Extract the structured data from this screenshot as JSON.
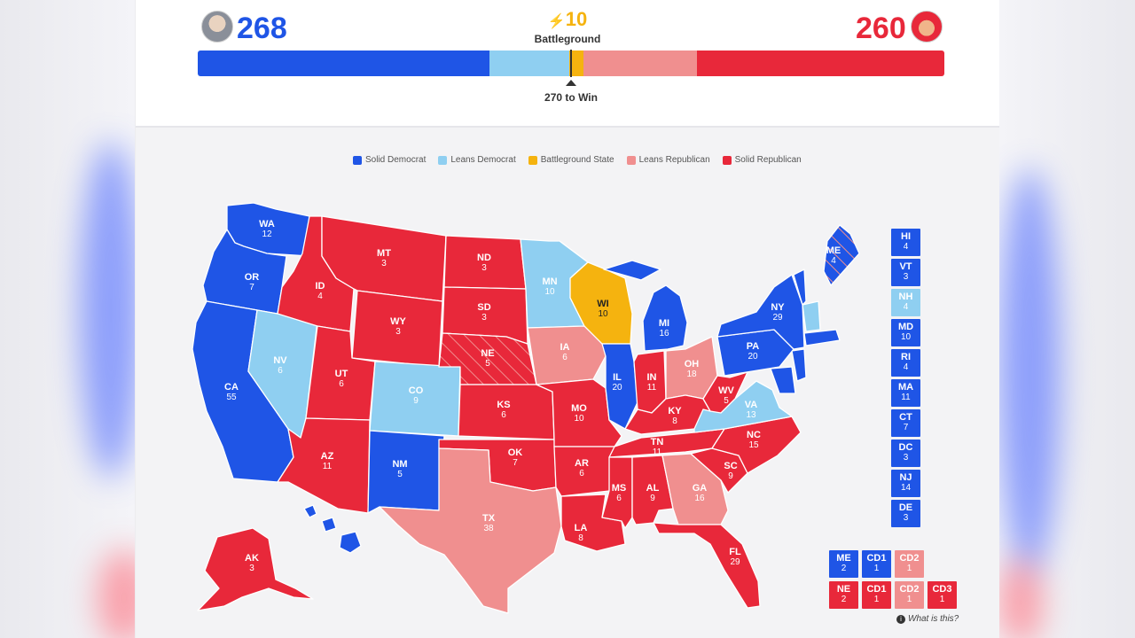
{
  "colors": {
    "solid_dem": "#1f55e6",
    "lean_dem": "#8fcff1",
    "battleground": "#f5b30f",
    "lean_rep": "#f08f8f",
    "solid_rep": "#e8283a"
  },
  "header": {
    "dem_score": "268",
    "rep_score": "260",
    "battleground_count": "10",
    "battleground_label": "Battleground",
    "to_win_label": "270 to Win",
    "bar": {
      "solid_dem": 210,
      "lean_dem": 58,
      "battleground": 10,
      "lean_rep": 82,
      "solid_rep": 178
    }
  },
  "legend": [
    {
      "label": "Solid Democrat",
      "color": "#1f55e6"
    },
    {
      "label": "Leans Democrat",
      "color": "#8fcff1"
    },
    {
      "label": "Battleground State",
      "color": "#f5b30f"
    },
    {
      "label": "Leans Republican",
      "color": "#f08f8f"
    },
    {
      "label": "Solid Republican",
      "color": "#e8283a"
    }
  ],
  "states": [
    {
      "abbr": "WA",
      "ev": "12",
      "rating": "solid_dem"
    },
    {
      "abbr": "OR",
      "ev": "7",
      "rating": "solid_dem"
    },
    {
      "abbr": "CA",
      "ev": "55",
      "rating": "solid_dem"
    },
    {
      "abbr": "NV",
      "ev": "6",
      "rating": "lean_dem"
    },
    {
      "abbr": "ID",
      "ev": "4",
      "rating": "solid_rep"
    },
    {
      "abbr": "MT",
      "ev": "3",
      "rating": "solid_rep"
    },
    {
      "abbr": "WY",
      "ev": "3",
      "rating": "solid_rep"
    },
    {
      "abbr": "UT",
      "ev": "6",
      "rating": "solid_rep"
    },
    {
      "abbr": "AZ",
      "ev": "11",
      "rating": "solid_rep"
    },
    {
      "abbr": "CO",
      "ev": "9",
      "rating": "lean_dem"
    },
    {
      "abbr": "NM",
      "ev": "5",
      "rating": "solid_dem"
    },
    {
      "abbr": "ND",
      "ev": "3",
      "rating": "solid_rep"
    },
    {
      "abbr": "SD",
      "ev": "3",
      "rating": "solid_rep"
    },
    {
      "abbr": "NE",
      "ev": "5",
      "rating": "solid_rep"
    },
    {
      "abbr": "KS",
      "ev": "6",
      "rating": "solid_rep"
    },
    {
      "abbr": "OK",
      "ev": "7",
      "rating": "solid_rep"
    },
    {
      "abbr": "TX",
      "ev": "38",
      "rating": "lean_rep"
    },
    {
      "abbr": "MN",
      "ev": "10",
      "rating": "lean_dem"
    },
    {
      "abbr": "IA",
      "ev": "6",
      "rating": "lean_rep"
    },
    {
      "abbr": "MO",
      "ev": "10",
      "rating": "solid_rep"
    },
    {
      "abbr": "AR",
      "ev": "6",
      "rating": "solid_rep"
    },
    {
      "abbr": "LA",
      "ev": "8",
      "rating": "solid_rep"
    },
    {
      "abbr": "WI",
      "ev": "10",
      "rating": "battleground"
    },
    {
      "abbr": "IL",
      "ev": "20",
      "rating": "solid_dem"
    },
    {
      "abbr": "MI",
      "ev": "16",
      "rating": "solid_dem"
    },
    {
      "abbr": "IN",
      "ev": "11",
      "rating": "solid_rep"
    },
    {
      "abbr": "OH",
      "ev": "18",
      "rating": "lean_rep"
    },
    {
      "abbr": "KY",
      "ev": "8",
      "rating": "solid_rep"
    },
    {
      "abbr": "TN",
      "ev": "11",
      "rating": "solid_rep"
    },
    {
      "abbr": "MS",
      "ev": "6",
      "rating": "solid_rep"
    },
    {
      "abbr": "AL",
      "ev": "9",
      "rating": "solid_rep"
    },
    {
      "abbr": "GA",
      "ev": "16",
      "rating": "lean_rep"
    },
    {
      "abbr": "FL",
      "ev": "29",
      "rating": "solid_rep"
    },
    {
      "abbr": "SC",
      "ev": "9",
      "rating": "solid_rep"
    },
    {
      "abbr": "NC",
      "ev": "15",
      "rating": "solid_rep"
    },
    {
      "abbr": "VA",
      "ev": "13",
      "rating": "lean_dem"
    },
    {
      "abbr": "WV",
      "ev": "5",
      "rating": "solid_rep"
    },
    {
      "abbr": "PA",
      "ev": "20",
      "rating": "solid_dem"
    },
    {
      "abbr": "NY",
      "ev": "29",
      "rating": "solid_dem"
    },
    {
      "abbr": "ME",
      "ev": "4",
      "rating": "solid_dem"
    },
    {
      "abbr": "AK",
      "ev": "3",
      "rating": "solid_rep"
    }
  ],
  "small_states": [
    {
      "abbr": "HI",
      "ev": "4",
      "rating": "solid_dem"
    },
    {
      "abbr": "VT",
      "ev": "3",
      "rating": "solid_dem"
    },
    {
      "abbr": "NH",
      "ev": "4",
      "rating": "lean_dem"
    },
    {
      "abbr": "MD",
      "ev": "10",
      "rating": "solid_dem"
    },
    {
      "abbr": "RI",
      "ev": "4",
      "rating": "solid_dem"
    },
    {
      "abbr": "MA",
      "ev": "11",
      "rating": "solid_dem"
    },
    {
      "abbr": "CT",
      "ev": "7",
      "rating": "solid_dem"
    },
    {
      "abbr": "DC",
      "ev": "3",
      "rating": "solid_dem"
    },
    {
      "abbr": "NJ",
      "ev": "14",
      "rating": "solid_dem"
    },
    {
      "abbr": "DE",
      "ev": "3",
      "rating": "solid_dem"
    }
  ],
  "districts": {
    "me_row": [
      {
        "abbr": "ME",
        "ev": "2",
        "rating": "solid_dem"
      },
      {
        "abbr": "CD1",
        "ev": "1",
        "rating": "solid_dem"
      },
      {
        "abbr": "CD2",
        "ev": "1",
        "rating": "lean_rep"
      }
    ],
    "ne_row": [
      {
        "abbr": "NE",
        "ev": "2",
        "rating": "solid_rep"
      },
      {
        "abbr": "CD1",
        "ev": "1",
        "rating": "solid_rep"
      },
      {
        "abbr": "CD2",
        "ev": "1",
        "rating": "lean_rep"
      },
      {
        "abbr": "CD3",
        "ev": "1",
        "rating": "solid_rep"
      }
    ]
  },
  "what_is_this": "What is this?"
}
